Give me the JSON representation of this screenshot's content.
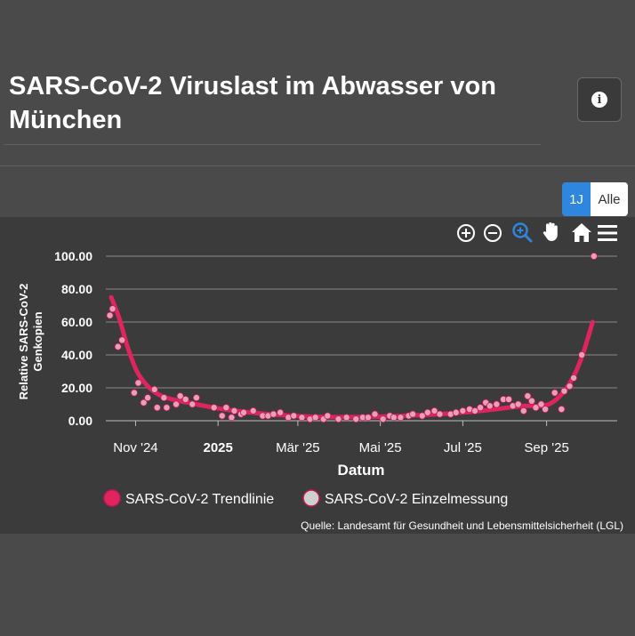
{
  "header": {
    "title": "SARS-CoV-2 Viruslast im Abwasser von München",
    "info_icon": "info-icon"
  },
  "range_selector": {
    "options": [
      "1J",
      "Alle"
    ],
    "selected": "1J"
  },
  "toolbar": {
    "icons": [
      "zoom-in-icon",
      "zoom-out-icon",
      "zoom-select-icon",
      "pan-hand-icon",
      "home-icon",
      "menu-icon"
    ],
    "active": "zoom-select-icon"
  },
  "colors": {
    "trend": "#e0245e",
    "points_fill": "#e8a0b8",
    "points_stroke": "#c2185b",
    "active_tool": "#2e86de"
  },
  "source": "Quelle: Landesamt für Gesundheit und Lebensmittelsicherheit (LGL)",
  "chart_data": {
    "type": "line",
    "title": "",
    "xlabel": "Datum",
    "ylabel": "Relative SARS-CoV-2 Genkopien",
    "ylim": [
      0,
      100
    ],
    "yticks": [
      "100.00",
      "80.00",
      "60.00",
      "40.00",
      "20.00",
      "0.00"
    ],
    "xlim": [
      "2024-10-10",
      "2025-10-14"
    ],
    "xticks": [
      {
        "label": "Nov '24",
        "date": "2024-11-01",
        "bold": false
      },
      {
        "label": "2025",
        "date": "2025-01-01",
        "bold": true
      },
      {
        "label": "Mär '25",
        "date": "2025-03-01",
        "bold": false
      },
      {
        "label": "Mai '25",
        "date": "2025-05-01",
        "bold": false
      },
      {
        "label": "Jul '25",
        "date": "2025-07-01",
        "bold": false
      },
      {
        "label": "Sep '25",
        "date": "2025-09-01",
        "bold": false
      }
    ],
    "grid": true,
    "legend": "bottom",
    "series": [
      {
        "name": "SARS-CoV-2 Trendlinie",
        "kind": "line",
        "points": [
          [
            "2024-10-14",
            75
          ],
          [
            "2024-10-20",
            62
          ],
          [
            "2024-10-26",
            45
          ],
          [
            "2024-11-02",
            30
          ],
          [
            "2024-11-10",
            21
          ],
          [
            "2024-11-18",
            16
          ],
          [
            "2024-11-28",
            13
          ],
          [
            "2024-12-10",
            11
          ],
          [
            "2024-12-22",
            9
          ],
          [
            "2025-01-05",
            7
          ],
          [
            "2025-01-25",
            5
          ],
          [
            "2025-02-15",
            3.5
          ],
          [
            "2025-03-10",
            2.5
          ],
          [
            "2025-04-01",
            2.2
          ],
          [
            "2025-05-01",
            2.5
          ],
          [
            "2025-06-01",
            3.5
          ],
          [
            "2025-07-01",
            5
          ],
          [
            "2025-07-25",
            7
          ],
          [
            "2025-08-15",
            9
          ],
          [
            "2025-08-28",
            9
          ],
          [
            "2025-09-05",
            11
          ],
          [
            "2025-09-13",
            17
          ],
          [
            "2025-09-21",
            27
          ],
          [
            "2025-09-28",
            41
          ],
          [
            "2025-10-05",
            60
          ]
        ]
      },
      {
        "name": "SARS-CoV-2 Einzelmessung",
        "kind": "scatter",
        "points": [
          [
            "2024-10-13",
            64
          ],
          [
            "2024-10-15",
            68
          ],
          [
            "2024-10-19",
            45
          ],
          [
            "2024-10-22",
            49
          ],
          [
            "2024-10-31",
            17
          ],
          [
            "2024-11-03",
            23
          ],
          [
            "2024-11-07",
            11
          ],
          [
            "2024-11-10",
            14
          ],
          [
            "2024-11-15",
            19
          ],
          [
            "2024-11-17",
            8
          ],
          [
            "2024-11-22",
            14
          ],
          [
            "2024-11-24",
            8
          ],
          [
            "2024-12-01",
            10
          ],
          [
            "2024-12-04",
            15
          ],
          [
            "2024-12-08",
            13
          ],
          [
            "2024-12-13",
            10
          ],
          [
            "2024-12-16",
            14
          ],
          [
            "2024-12-29",
            8
          ],
          [
            "2025-01-04",
            3
          ],
          [
            "2025-01-07",
            8
          ],
          [
            "2025-01-11",
            2
          ],
          [
            "2025-01-13",
            6
          ],
          [
            "2025-01-18",
            4
          ],
          [
            "2025-01-20",
            5
          ],
          [
            "2025-01-27",
            6
          ],
          [
            "2025-02-03",
            3
          ],
          [
            "2025-02-07",
            3
          ],
          [
            "2025-02-11",
            4
          ],
          [
            "2025-02-16",
            5
          ],
          [
            "2025-02-22",
            2
          ],
          [
            "2025-02-26",
            3
          ],
          [
            "2025-03-04",
            2
          ],
          [
            "2025-03-10",
            1
          ],
          [
            "2025-03-14",
            2
          ],
          [
            "2025-03-20",
            1
          ],
          [
            "2025-03-23",
            3
          ],
          [
            "2025-03-31",
            1
          ],
          [
            "2025-04-06",
            2
          ],
          [
            "2025-04-13",
            1
          ],
          [
            "2025-04-18",
            2
          ],
          [
            "2025-04-22",
            2
          ],
          [
            "2025-04-27",
            4
          ],
          [
            "2025-05-03",
            1
          ],
          [
            "2025-05-08",
            3
          ],
          [
            "2025-05-11",
            2
          ],
          [
            "2025-05-16",
            2
          ],
          [
            "2025-05-22",
            3
          ],
          [
            "2025-05-25",
            4
          ],
          [
            "2025-06-01",
            3
          ],
          [
            "2025-06-05",
            5
          ],
          [
            "2025-06-10",
            6
          ],
          [
            "2025-06-14",
            4
          ],
          [
            "2025-06-22",
            4
          ],
          [
            "2025-06-26",
            5
          ],
          [
            "2025-07-01",
            6
          ],
          [
            "2025-07-06",
            7
          ],
          [
            "2025-07-10",
            6
          ],
          [
            "2025-07-14",
            8
          ],
          [
            "2025-07-18",
            11
          ],
          [
            "2025-07-21",
            9
          ],
          [
            "2025-07-26",
            10
          ],
          [
            "2025-07-31",
            13
          ],
          [
            "2025-08-04",
            13
          ],
          [
            "2025-08-07",
            9
          ],
          [
            "2025-08-11",
            10
          ],
          [
            "2025-08-15",
            6
          ],
          [
            "2025-08-18",
            15
          ],
          [
            "2025-08-21",
            12
          ],
          [
            "2025-08-24",
            8
          ],
          [
            "2025-08-28",
            10
          ],
          [
            "2025-08-31",
            7
          ],
          [
            "2025-09-07",
            17
          ],
          [
            "2025-09-12",
            7
          ],
          [
            "2025-09-14",
            18
          ],
          [
            "2025-09-18",
            21
          ],
          [
            "2025-09-21",
            26
          ],
          [
            "2025-09-27",
            40
          ],
          [
            "2025-10-06",
            100
          ]
        ]
      }
    ]
  }
}
